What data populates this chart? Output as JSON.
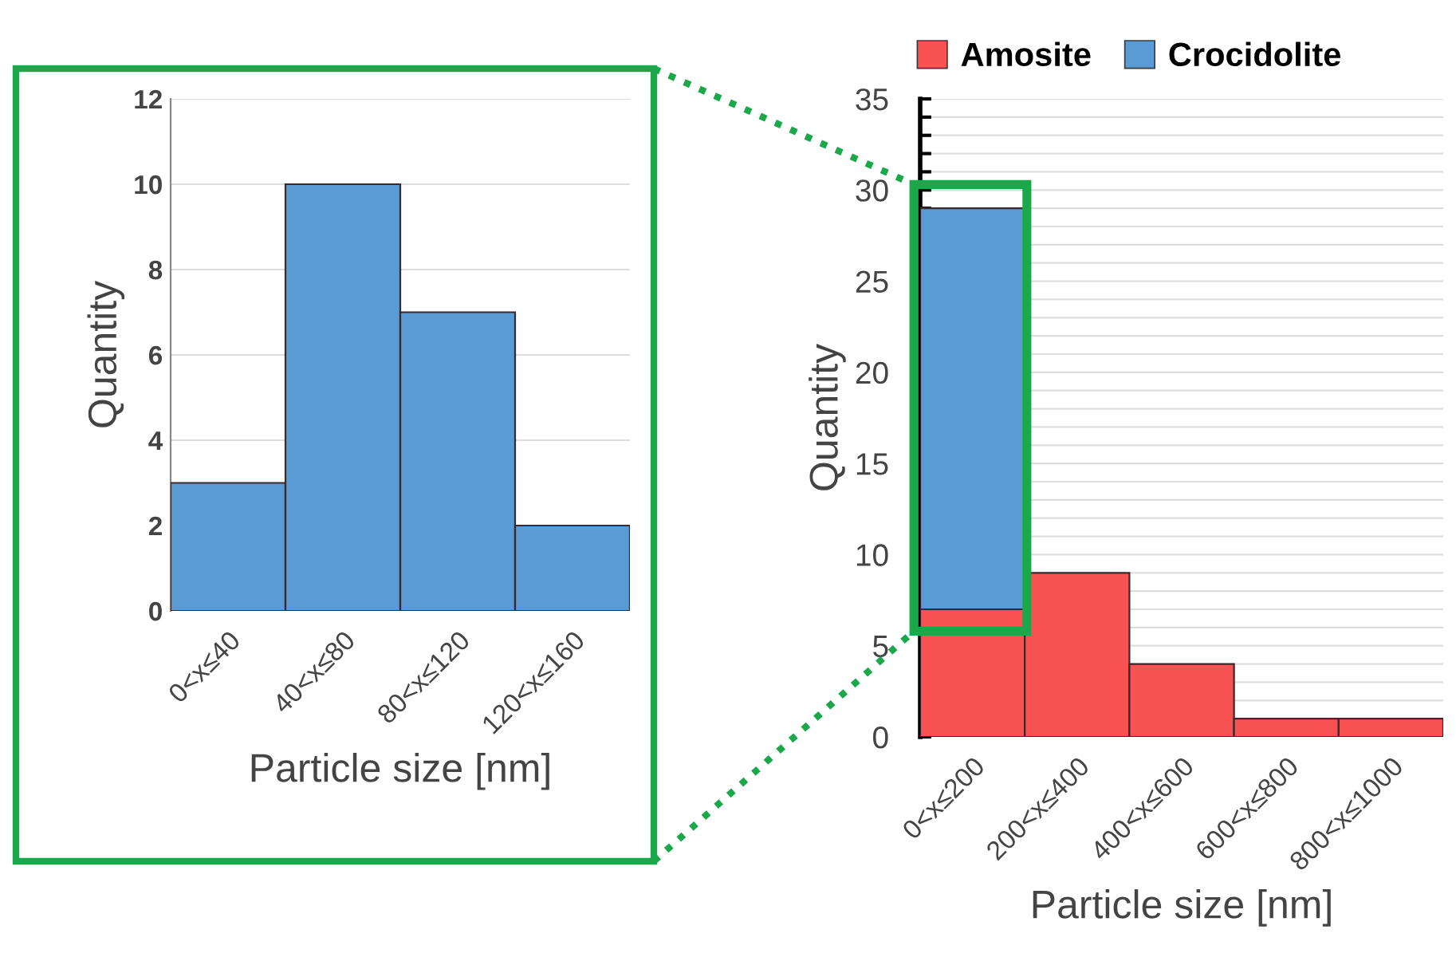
{
  "chart_data": [
    {
      "type": "bar",
      "categories": [
        "0<x≤40",
        "40<x≤80",
        "80<x≤120",
        "120<x≤160"
      ],
      "xlabel": "Particle size [nm]",
      "ylabel": "Quantity",
      "series": [
        {
          "color": "#5b9bd5",
          "values": [
            3,
            10,
            7,
            2
          ]
        }
      ],
      "ylim": [
        0,
        12
      ],
      "yticks": [
        0,
        2,
        4,
        6,
        8,
        10,
        12
      ],
      "grid": "y"
    },
    {
      "type": "bar",
      "stacked": true,
      "categories": [
        "0<x≤200",
        "200<x≤400",
        "400<x≤600",
        "600<x≤800",
        "800<x≤1000"
      ],
      "xlabel": "Particle size [nm]",
      "ylabel": "Quantity",
      "series": [
        {
          "name": "Amosite",
          "color": "#f95252",
          "values": [
            7,
            9,
            4,
            1,
            1
          ]
        },
        {
          "name": "Crocidolite",
          "color": "#5b9bd5",
          "values": [
            22,
            0,
            0,
            0,
            0
          ]
        }
      ],
      "ylim": [
        0,
        35
      ],
      "yticks": [
        0,
        {
          "value": 1,
          "label": null
        },
        {
          "value": 2,
          "label": null
        },
        {
          "value": 3,
          "label": null
        },
        {
          "value": 4,
          "label": null
        },
        5,
        {
          "value": 6,
          "label": null
        },
        {
          "value": 7,
          "label": null
        },
        {
          "value": 8,
          "label": null
        },
        {
          "value": 9,
          "label": null
        },
        10,
        {
          "value": 11,
          "label": null
        },
        {
          "value": 12,
          "label": null
        },
        {
          "value": 13,
          "label": null
        },
        {
          "value": 14,
          "label": null
        },
        15,
        {
          "value": 16,
          "label": null
        },
        {
          "value": 17,
          "label": null
        },
        {
          "value": 18,
          "label": null
        },
        {
          "value": 19,
          "label": null
        },
        20,
        {
          "value": 21,
          "label": null
        },
        {
          "value": 22,
          "label": null
        },
        {
          "value": 23,
          "label": null
        },
        {
          "value": 24,
          "label": null
        },
        25,
        {
          "value": 26,
          "label": null
        },
        {
          "value": 27,
          "label": null
        },
        {
          "value": 28,
          "label": null
        },
        {
          "value": 29,
          "label": null
        },
        30,
        {
          "value": 31,
          "label": null
        },
        {
          "value": 32,
          "label": null
        },
        {
          "value": 33,
          "label": null
        },
        {
          "value": 34,
          "label": null
        },
        35
      ],
      "grid": "y",
      "legend": "top"
    }
  ]
}
